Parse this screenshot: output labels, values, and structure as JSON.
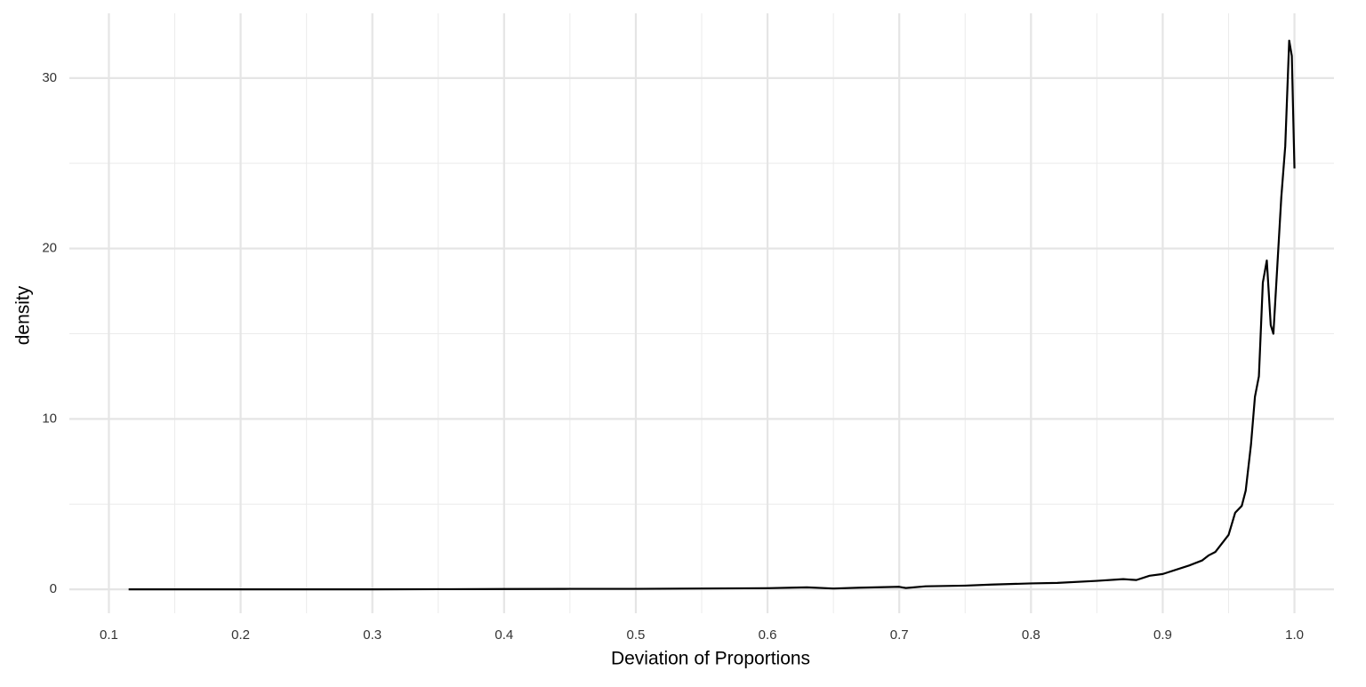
{
  "chart_data": {
    "type": "line",
    "x_label": "Deviation of Proportions",
    "y_label": "density",
    "series": [
      {
        "color": "#000000",
        "x": [
          0.115,
          0.15,
          0.2,
          0.25,
          0.3,
          0.35,
          0.4,
          0.45,
          0.5,
          0.55,
          0.6,
          0.63,
          0.65,
          0.67,
          0.7,
          0.705,
          0.72,
          0.75,
          0.77,
          0.8,
          0.82,
          0.85,
          0.87,
          0.88,
          0.89,
          0.9,
          0.92,
          0.93,
          0.935,
          0.94,
          0.95,
          0.955,
          0.96,
          0.963,
          0.967,
          0.97,
          0.973,
          0.976,
          0.979,
          0.982,
          0.984,
          0.987,
          0.99,
          0.993,
          0.996,
          0.998,
          1.0
        ],
        "values": [
          0.0,
          0.0,
          0.0,
          0.0,
          0.0,
          0.01,
          0.02,
          0.03,
          0.03,
          0.05,
          0.07,
          0.12,
          0.05,
          0.1,
          0.15,
          0.08,
          0.18,
          0.22,
          0.28,
          0.35,
          0.38,
          0.5,
          0.6,
          0.55,
          0.8,
          0.9,
          1.4,
          1.7,
          2.0,
          2.2,
          3.2,
          4.5,
          4.9,
          5.8,
          8.5,
          11.3,
          12.5,
          18.0,
          19.3,
          15.5,
          15.0,
          19.0,
          23.0,
          26.0,
          32.2,
          31.3,
          24.7
        ]
      }
    ],
    "xlim": [
      0.07,
      1.03
    ],
    "ylim": [
      -1.4,
      33.8
    ],
    "xticks": [
      0.1,
      0.2,
      0.3,
      0.4,
      0.5,
      0.6,
      0.7,
      0.8,
      0.9,
      {
        "value": 1,
        "label": "1.0"
      }
    ],
    "xminorticks": [
      0.15,
      0.25,
      0.35,
      0.45,
      0.55,
      0.65,
      0.75,
      0.85,
      0.95
    ],
    "yticks": [
      0,
      10,
      20,
      30
    ],
    "yminorticks": [
      5,
      15,
      25
    ],
    "grid": true
  }
}
